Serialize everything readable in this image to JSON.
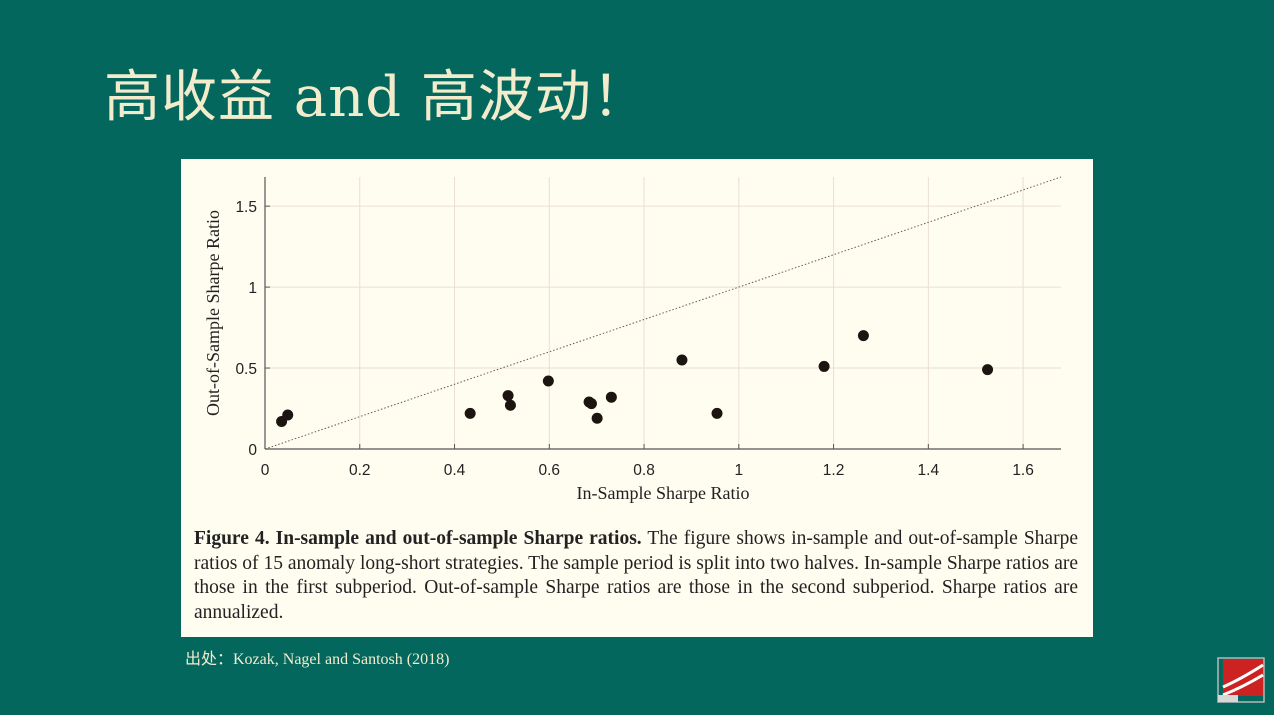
{
  "slide": {
    "title": "高收益 and 高波动！",
    "source": "出处：Kozak, Nagel and Santosh (2018)"
  },
  "caption": {
    "bold": "Figure 4.  In-sample and out-of-sample Sharpe ratios.",
    "text": " The figure shows in-sample and out-of-sample Sharpe ratios of 15 anomaly long-short strategies. The sample period is split into two halves. In-sample Sharpe ratios are those in the first subperiod. Out-of-sample Sharpe ratios are those in the second subperiod. Sharpe ratios are annualized."
  },
  "colors": {
    "background": "#03675e",
    "panel": "#fffdf0",
    "title": "#f2ebcc",
    "points": "#1c1410",
    "grid": "#eaded4",
    "logo_red": "#cc2222"
  },
  "logo": {
    "icon": "institution-logo-icon"
  },
  "chart_data": {
    "type": "scatter",
    "title": "",
    "xlabel": "In-Sample Sharpe Ratio",
    "ylabel": "Out-of-Sample Sharpe Ratio",
    "xlim": [
      0,
      1.68
    ],
    "ylim": [
      0,
      1.68
    ],
    "xticks": [
      0,
      0.2,
      0.4,
      0.6,
      0.8,
      1,
      1.2,
      1.4,
      1.6
    ],
    "xtick_labels": [
      "0",
      "0.2",
      "0.4",
      "0.6",
      "0.8",
      "1",
      "1.2",
      "1.4",
      "1.6"
    ],
    "yticks": [
      0,
      0.5,
      1,
      1.5
    ],
    "ytick_labels": [
      "0",
      "0.5",
      "1",
      "1.5"
    ],
    "grid": true,
    "reference_line": "45-degree dotted line (y = x)",
    "series": [
      {
        "x": [
          0.035,
          0.048,
          0.433,
          0.513,
          0.518,
          0.598,
          0.684,
          0.689,
          0.701,
          0.731,
          0.88,
          0.954,
          1.18,
          1.263,
          1.525
        ],
        "y": [
          0.17,
          0.21,
          0.22,
          0.33,
          0.27,
          0.42,
          0.29,
          0.28,
          0.19,
          0.32,
          0.55,
          0.22,
          0.51,
          0.7,
          0.49
        ]
      }
    ]
  }
}
